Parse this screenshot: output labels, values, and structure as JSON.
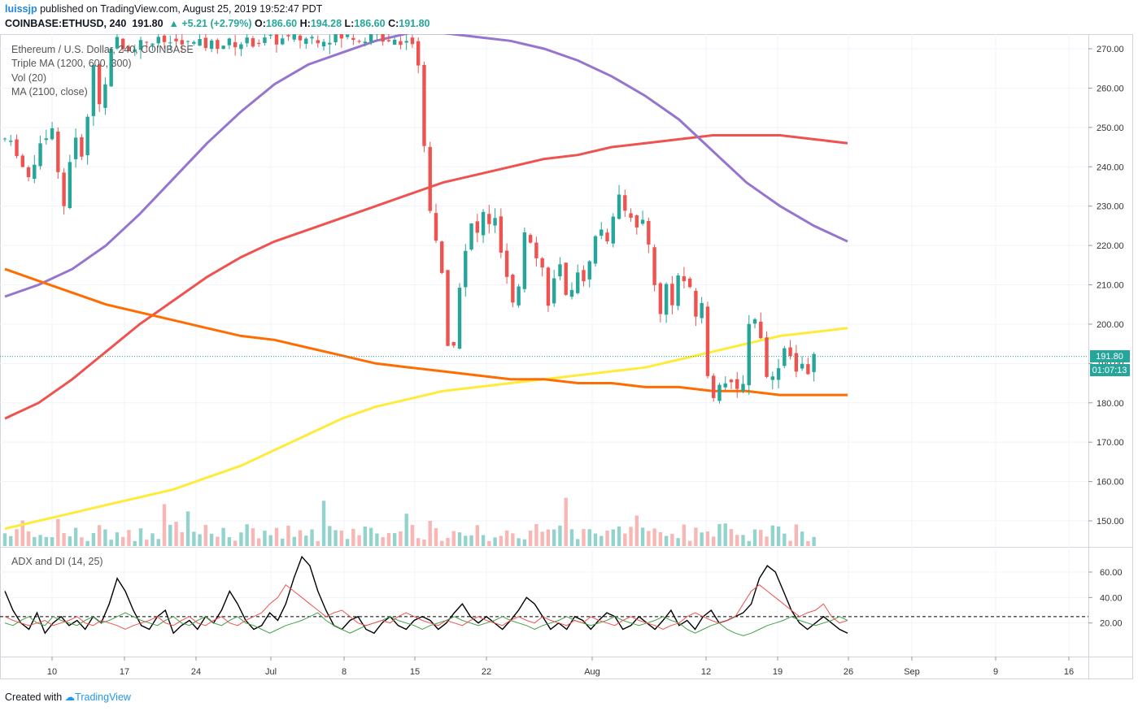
{
  "header": {
    "user": "luissjp",
    "published": " published on TradingView.com, August 25, 2019 19:52:47 PDT",
    "symbol": "COINBASE:ETHUSD, 240",
    "last": "191.80",
    "change": "+5.21 (+2.79%)",
    "o_label": "O:",
    "o_value": "186.60",
    "h_label": "H:",
    "h_value": "194.28",
    "l_label": "L:",
    "l_value": "186.60",
    "c_label": "C:",
    "c_value": "191.80"
  },
  "legend": {
    "line1": "Ethereum / U.S. Dollar, 240, COINBASE",
    "line2": "Triple MA (1200, 600, 300)",
    "line3": "Vol (20)",
    "line4": "MA (2100, close)"
  },
  "adx_title": "ADX and DI (14, 25)",
  "price_tag": "191.80",
  "timer_tag": "01:07:13",
  "footer": {
    "created": "Created with ",
    "brand": "TradingView"
  },
  "colors": {
    "up": "#26a69a",
    "down": "#ef5350",
    "ma300": "#ef5350",
    "ma600": "#9575cd",
    "ma1200": "#ffeb3b",
    "ma2100": "#ff6d00",
    "adx": "#000000",
    "di_plus": "#43a047",
    "di_minus": "#ef5350"
  },
  "chart_data": [
    {
      "type": "candlestick",
      "title": "Ethereum / U.S. Dollar, 240, COINBASE",
      "yaxis_ticks": [
        "150.00",
        "160.00",
        "170.00",
        "180.00",
        "190.00",
        "200.00",
        "210.00",
        "220.00",
        "230.00",
        "240.00",
        "250.00",
        "260.00",
        "270.00"
      ],
      "xaxis_ticks": [
        "10",
        "17",
        "24",
        "Jul",
        "8",
        "15",
        "22",
        "Aug",
        "12",
        "19",
        "26",
        "Sep",
        "9",
        "16"
      ],
      "ylim": [
        144,
        273
      ],
      "last_price": 191.8,
      "price_path": [
        [
          6,
          247
        ],
        [
          8,
          244
        ],
        [
          10,
          236
        ],
        [
          12,
          247
        ],
        [
          14,
          249
        ],
        [
          15,
          240
        ],
        [
          16,
          230
        ],
        [
          17,
          242
        ],
        [
          18,
          246
        ],
        [
          19,
          244
        ],
        [
          20,
          252
        ],
        [
          21,
          266
        ],
        [
          22,
          256
        ],
        [
          23,
          262
        ],
        [
          24,
          269
        ],
        [
          25,
          272
        ],
        [
          26,
          270
        ],
        [
          30,
          272
        ],
        [
          40,
          271
        ],
        [
          50,
          272
        ],
        [
          60,
          273
        ],
        [
          70,
          273
        ],
        [
          75,
          272
        ],
        [
          76,
          266
        ],
        [
          77,
          245
        ],
        [
          78,
          230
        ],
        [
          79,
          222
        ],
        [
          80,
          212
        ],
        [
          81,
          194
        ],
        [
          82,
          196
        ],
        [
          83,
          210
        ],
        [
          84,
          218
        ],
        [
          85,
          225
        ],
        [
          86,
          223
        ],
        [
          87,
          228
        ],
        [
          88,
          226
        ],
        [
          89,
          226
        ],
        [
          90,
          218
        ],
        [
          91,
          211
        ],
        [
          92,
          204
        ],
        [
          93,
          210
        ],
        [
          94,
          224
        ],
        [
          95,
          222
        ],
        [
          96,
          218
        ],
        [
          97,
          214
        ],
        [
          98,
          206
        ],
        [
          99,
          211
        ],
        [
          100,
          214
        ],
        [
          101,
          206
        ],
        [
          102,
          210
        ],
        [
          103,
          214
        ],
        [
          104,
          210
        ],
        [
          105,
          217
        ],
        [
          106,
          222
        ],
        [
          107,
          224
        ],
        [
          108,
          222
        ],
        [
          109,
          226
        ],
        [
          110,
          234
        ],
        [
          111,
          230
        ],
        [
          112,
          228
        ],
        [
          113,
          224
        ],
        [
          114,
          226
        ],
        [
          115,
          220
        ],
        [
          116,
          211
        ],
        [
          117,
          202
        ],
        [
          118,
          210
        ],
        [
          119,
          206
        ],
        [
          120,
          212
        ],
        [
          121,
          211
        ],
        [
          122,
          208
        ],
        [
          123,
          202
        ],
        [
          124,
          206
        ],
        [
          125,
          186
        ],
        [
          126,
          182
        ],
        [
          127,
          186
        ],
        [
          128,
          185
        ],
        [
          129,
          184
        ],
        [
          130,
          183
        ],
        [
          131,
          186
        ],
        [
          132,
          200
        ],
        [
          133,
          202
        ],
        [
          134,
          196
        ],
        [
          135,
          188
        ],
        [
          136,
          186
        ],
        [
          137,
          190
        ],
        [
          138,
          194
        ],
        [
          139,
          193
        ],
        [
          140,
          188
        ],
        [
          141,
          189
        ],
        [
          142,
          186
        ],
        [
          143,
          192
        ]
      ],
      "series": [
        {
          "name": "Triple MA 300",
          "values": [
            176,
            180,
            186,
            193,
            200,
            206,
            212,
            217,
            221,
            224,
            227,
            230,
            233,
            236,
            238,
            240,
            242,
            243,
            245,
            246,
            247,
            248,
            248,
            248,
            247,
            246
          ]
        },
        {
          "name": "Triple MA 600",
          "values": [
            207,
            210,
            214,
            220,
            228,
            237,
            246,
            254,
            261,
            266,
            269,
            272,
            274,
            274,
            273,
            272,
            270,
            267,
            263,
            258,
            252,
            244,
            236,
            230,
            225,
            221
          ]
        },
        {
          "name": "Triple MA 1200",
          "values": [
            148,
            150,
            152,
            154,
            156,
            158,
            161,
            164,
            168,
            172,
            176,
            179,
            181,
            183,
            184,
            185,
            186,
            187,
            188,
            189,
            191,
            193,
            195,
            197,
            198,
            199
          ]
        },
        {
          "name": "MA 2100",
          "values": [
            214,
            211,
            208,
            205,
            203,
            201,
            199,
            197,
            196,
            194,
            192,
            190,
            189,
            188,
            187,
            186,
            186,
            185,
            185,
            184,
            184,
            183,
            183,
            182,
            182,
            182
          ]
        }
      ]
    },
    {
      "type": "line",
      "title": "ADX and DI (14, 25)",
      "yaxis_ticks": [
        "20.00",
        "40.00",
        "60.00"
      ],
      "ylim": [
        0,
        77
      ],
      "threshold": 25,
      "series": [
        {
          "name": "ADX",
          "values": [
            45,
            30,
            20,
            15,
            28,
            12,
            20,
            25,
            18,
            22,
            15,
            25,
            20,
            35,
            55,
            45,
            30,
            18,
            15,
            25,
            30,
            12,
            18,
            22,
            15,
            25,
            20,
            30,
            45,
            35,
            22,
            15,
            18,
            28,
            22,
            35,
            55,
            72,
            65,
            45,
            30,
            18,
            15,
            22,
            25,
            15,
            12,
            20,
            25,
            18,
            15,
            22,
            25,
            22,
            15,
            20,
            28,
            35,
            25,
            20,
            25,
            20,
            15,
            22,
            30,
            40,
            35,
            25,
            15,
            20,
            15,
            25,
            22,
            15,
            22,
            28,
            25,
            15,
            18,
            25,
            20,
            15,
            22,
            30,
            18,
            22,
            15,
            25,
            30,
            20,
            22,
            25,
            28,
            35,
            55,
            65,
            60,
            45,
            30,
            20,
            15,
            20,
            25,
            20,
            15,
            12
          ]
        },
        {
          "name": "+DI",
          "values": [
            20,
            18,
            22,
            25,
            20,
            18,
            25,
            22,
            20,
            18,
            22,
            25,
            20,
            22,
            25,
            28,
            25,
            22,
            20,
            18,
            22,
            25,
            20,
            18,
            22,
            25,
            20,
            18,
            22,
            25,
            20,
            18,
            15,
            12,
            15,
            18,
            20,
            22,
            25,
            28,
            22,
            18,
            15,
            12,
            15,
            18,
            20,
            22,
            25,
            22,
            20,
            18,
            15,
            18,
            20,
            22,
            25,
            22,
            20,
            18,
            20,
            22,
            25,
            22,
            20,
            18,
            15,
            18,
            20,
            22,
            25,
            22,
            20,
            18,
            20,
            22,
            25,
            22,
            20,
            18,
            20,
            22,
            25,
            22,
            20,
            15,
            12,
            15,
            18,
            20,
            15,
            12,
            10,
            12,
            15,
            18,
            20,
            22,
            25,
            22,
            20,
            18,
            20,
            22,
            25,
            22
          ]
        },
        {
          "name": "-DI",
          "values": [
            25,
            22,
            20,
            18,
            20,
            22,
            18,
            20,
            22,
            25,
            20,
            18,
            22,
            20,
            18,
            15,
            18,
            20,
            22,
            25,
            20,
            18,
            22,
            25,
            20,
            18,
            22,
            25,
            20,
            18,
            22,
            25,
            28,
            35,
            40,
            50,
            45,
            40,
            35,
            30,
            25,
            28,
            30,
            25,
            20,
            18,
            20,
            22,
            20,
            25,
            28,
            25,
            22,
            20,
            18,
            22,
            20,
            18,
            22,
            25,
            22,
            20,
            18,
            22,
            25,
            22,
            20,
            25,
            22,
            20,
            18,
            22,
            20,
            25,
            22,
            20,
            18,
            22,
            25,
            22,
            20,
            18,
            15,
            18,
            20,
            25,
            28,
            25,
            22,
            20,
            22,
            25,
            35,
            45,
            50,
            45,
            40,
            35,
            30,
            25,
            28,
            30,
            35,
            25,
            20,
            22
          ]
        }
      ]
    }
  ]
}
